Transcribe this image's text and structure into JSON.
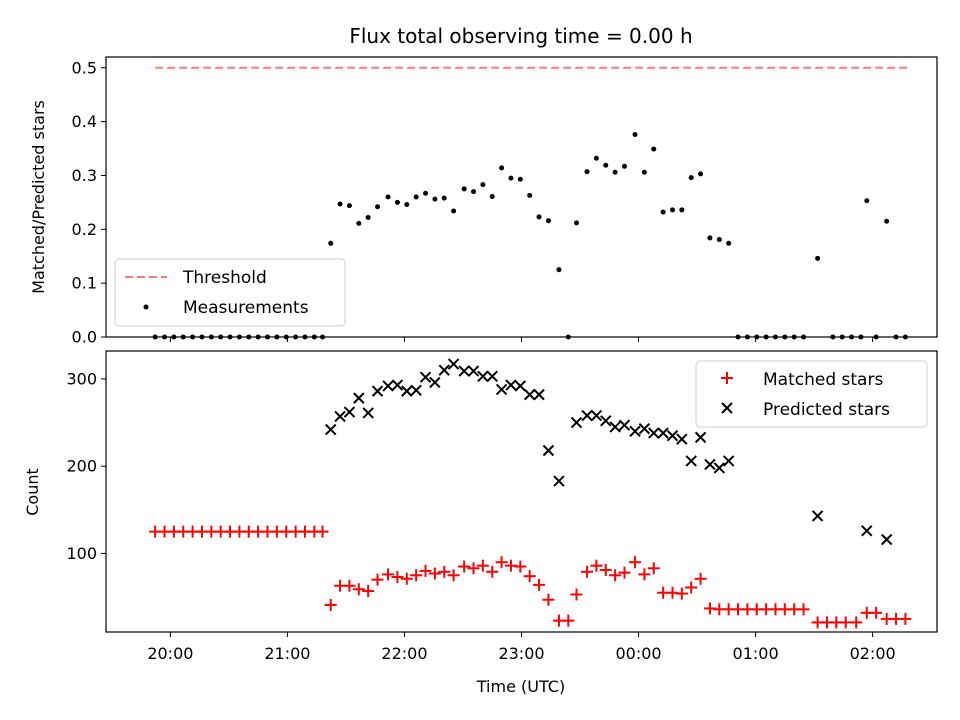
{
  "chart_data": [
    {
      "type": "scatter",
      "title": "Flux total observing time = 0.00 h",
      "ylabel": "Matched/Predicted stars",
      "xlim": [
        -0.55,
        6.55
      ],
      "ylim": [
        0,
        0.52
      ],
      "yticks": [
        0,
        0.1,
        0.2,
        0.3,
        0.4,
        0.5
      ],
      "ytick_labels": [
        "0.0",
        "0.1",
        "0.2",
        "0.3",
        "0.4",
        "0.5"
      ],
      "xticks": [
        0,
        1,
        2,
        3,
        4,
        5,
        6
      ],
      "legend": {
        "position": "lower-left",
        "labels": [
          "Threshold",
          "Measurements"
        ]
      },
      "threshold": {
        "name": "Threshold",
        "value": 0.5,
        "x_range": [
          -0.13,
          6.3
        ],
        "color": "#f08080"
      },
      "series": [
        {
          "name": "Measurements",
          "color": "#000000",
          "points": [
            [
              -0.13,
              0.0
            ],
            [
              -0.05,
              0.0
            ],
            [
              0.03,
              0.0
            ],
            [
              0.11,
              0.0
            ],
            [
              0.19,
              0.0
            ],
            [
              0.27,
              0.0
            ],
            [
              0.35,
              0.0
            ],
            [
              0.43,
              0.0
            ],
            [
              0.51,
              0.0
            ],
            [
              0.59,
              0.0
            ],
            [
              0.67,
              0.0
            ],
            [
              0.75,
              0.0
            ],
            [
              0.83,
              0.0
            ],
            [
              0.91,
              0.0
            ],
            [
              0.99,
              0.0
            ],
            [
              1.07,
              0.0
            ],
            [
              1.15,
              0.0
            ],
            [
              1.23,
              0.0
            ],
            [
              1.3,
              0.0
            ],
            [
              1.37,
              0.174
            ],
            [
              1.45,
              0.247
            ],
            [
              1.53,
              0.244
            ],
            [
              1.61,
              0.211
            ],
            [
              1.69,
              0.222
            ],
            [
              1.77,
              0.242
            ],
            [
              1.86,
              0.26
            ],
            [
              1.94,
              0.25
            ],
            [
              2.02,
              0.246
            ],
            [
              2.1,
              0.26
            ],
            [
              2.18,
              0.267
            ],
            [
              2.26,
              0.256
            ],
            [
              2.34,
              0.258
            ],
            [
              2.42,
              0.234
            ],
            [
              2.51,
              0.275
            ],
            [
              2.59,
              0.27
            ],
            [
              2.67,
              0.283
            ],
            [
              2.75,
              0.261
            ],
            [
              2.83,
              0.314
            ],
            [
              2.91,
              0.295
            ],
            [
              2.99,
              0.293
            ],
            [
              3.07,
              0.263
            ],
            [
              3.15,
              0.223
            ],
            [
              3.23,
              0.216
            ],
            [
              3.32,
              0.125
            ],
            [
              3.4,
              0.0
            ],
            [
              3.47,
              0.212
            ],
            [
              3.56,
              0.307
            ],
            [
              3.64,
              0.332
            ],
            [
              3.72,
              0.319
            ],
            [
              3.8,
              0.306
            ],
            [
              3.88,
              0.317
            ],
            [
              3.97,
              0.376
            ],
            [
              4.05,
              0.306
            ],
            [
              4.13,
              0.349
            ],
            [
              4.21,
              0.232
            ],
            [
              4.29,
              0.236
            ],
            [
              4.37,
              0.236
            ],
            [
              4.45,
              0.296
            ],
            [
              4.53,
              0.303
            ],
            [
              4.61,
              0.184
            ],
            [
              4.69,
              0.181
            ],
            [
              4.77,
              0.174
            ],
            [
              4.85,
              0.0
            ],
            [
              4.93,
              0.0
            ],
            [
              5.01,
              0.0
            ],
            [
              5.09,
              0.0
            ],
            [
              5.17,
              0.0
            ],
            [
              5.25,
              0.0
            ],
            [
              5.33,
              0.0
            ],
            [
              5.41,
              0.0
            ],
            [
              5.53,
              0.146
            ],
            [
              5.66,
              0.0
            ],
            [
              5.74,
              0.0
            ],
            [
              5.82,
              0.0
            ],
            [
              5.9,
              0.0
            ],
            [
              5.95,
              0.253
            ],
            [
              6.03,
              0.0
            ],
            [
              6.12,
              0.215
            ],
            [
              6.2,
              0.0
            ],
            [
              6.28,
              0.0
            ]
          ]
        }
      ]
    },
    {
      "type": "scatter",
      "title": "",
      "xlabel": "Time (UTC)",
      "ylabel": "Count",
      "xlim": [
        -0.55,
        6.55
      ],
      "ylim": [
        10,
        332
      ],
      "yticks": [
        100,
        200,
        300
      ],
      "ytick_labels": [
        "100",
        "200",
        "300"
      ],
      "xticks": [
        0,
        1,
        2,
        3,
        4,
        5,
        6
      ],
      "xtick_labels": [
        "20:00",
        "21:00",
        "22:00",
        "23:00",
        "00:00",
        "01:00",
        "02:00"
      ],
      "legend": {
        "position": "top-right",
        "labels": [
          "Matched stars",
          "Predicted stars"
        ]
      },
      "series": [
        {
          "name": "Matched stars",
          "marker": "+",
          "color": "#ff0000",
          "points": [
            [
              -0.13,
              125
            ],
            [
              -0.05,
              125
            ],
            [
              0.03,
              125
            ],
            [
              0.11,
              125
            ],
            [
              0.19,
              125
            ],
            [
              0.27,
              125
            ],
            [
              0.35,
              125
            ],
            [
              0.43,
              125
            ],
            [
              0.51,
              125
            ],
            [
              0.59,
              125
            ],
            [
              0.67,
              125
            ],
            [
              0.75,
              125
            ],
            [
              0.83,
              125
            ],
            [
              0.91,
              125
            ],
            [
              0.99,
              125
            ],
            [
              1.07,
              125
            ],
            [
              1.15,
              125
            ],
            [
              1.23,
              125
            ],
            [
              1.3,
              125
            ],
            [
              1.37,
              41
            ],
            [
              1.45,
              63
            ],
            [
              1.53,
              63
            ],
            [
              1.61,
              59
            ],
            [
              1.69,
              57
            ],
            [
              1.77,
              70
            ],
            [
              1.86,
              76
            ],
            [
              1.94,
              73
            ],
            [
              2.02,
              71
            ],
            [
              2.1,
              75
            ],
            [
              2.18,
              80
            ],
            [
              2.26,
              77
            ],
            [
              2.34,
              79
            ],
            [
              2.42,
              75
            ],
            [
              2.51,
              85
            ],
            [
              2.59,
              83
            ],
            [
              2.67,
              86
            ],
            [
              2.75,
              79
            ],
            [
              2.83,
              90
            ],
            [
              2.91,
              86
            ],
            [
              2.99,
              85
            ],
            [
              3.07,
              74
            ],
            [
              3.15,
              64
            ],
            [
              3.23,
              47
            ],
            [
              3.32,
              23
            ],
            [
              3.4,
              23
            ],
            [
              3.47,
              53
            ],
            [
              3.56,
              79
            ],
            [
              3.64,
              86
            ],
            [
              3.72,
              81
            ],
            [
              3.8,
              75
            ],
            [
              3.88,
              78
            ],
            [
              3.97,
              90
            ],
            [
              4.05,
              76
            ],
            [
              4.13,
              83
            ],
            [
              4.21,
              55
            ],
            [
              4.29,
              55
            ],
            [
              4.37,
              54
            ],
            [
              4.45,
              61
            ],
            [
              4.53,
              71
            ],
            [
              4.61,
              37
            ],
            [
              4.69,
              36
            ],
            [
              4.77,
              36
            ],
            [
              4.85,
              36
            ],
            [
              4.93,
              36
            ],
            [
              5.01,
              36
            ],
            [
              5.09,
              36
            ],
            [
              5.17,
              36
            ],
            [
              5.25,
              36
            ],
            [
              5.33,
              36
            ],
            [
              5.41,
              36
            ],
            [
              5.53,
              21
            ],
            [
              5.61,
              21
            ],
            [
              5.69,
              21
            ],
            [
              5.77,
              21
            ],
            [
              5.86,
              21
            ],
            [
              5.95,
              32
            ],
            [
              6.03,
              32
            ],
            [
              6.12,
              25
            ],
            [
              6.2,
              25
            ],
            [
              6.28,
              25
            ]
          ]
        },
        {
          "name": "Predicted stars",
          "marker": "x",
          "color": "#000000",
          "points": [
            [
              1.37,
              242
            ],
            [
              1.45,
              257
            ],
            [
              1.53,
              262
            ],
            [
              1.61,
              278
            ],
            [
              1.69,
              261
            ],
            [
              1.77,
              286
            ],
            [
              1.86,
              292
            ],
            [
              1.94,
              293
            ],
            [
              2.02,
              286
            ],
            [
              2.1,
              287
            ],
            [
              2.18,
              302
            ],
            [
              2.26,
              296
            ],
            [
              2.34,
              310
            ],
            [
              2.42,
              317
            ],
            [
              2.51,
              309
            ],
            [
              2.59,
              309
            ],
            [
              2.67,
              303
            ],
            [
              2.75,
              303
            ],
            [
              2.83,
              288
            ],
            [
              2.91,
              293
            ],
            [
              2.99,
              292
            ],
            [
              3.07,
              282
            ],
            [
              3.15,
              282
            ],
            [
              3.23,
              218
            ],
            [
              3.32,
              183
            ],
            [
              3.47,
              250
            ],
            [
              3.56,
              258
            ],
            [
              3.64,
              258
            ],
            [
              3.72,
              252
            ],
            [
              3.8,
              245
            ],
            [
              3.88,
              247
            ],
            [
              3.97,
              240
            ],
            [
              4.05,
              243
            ],
            [
              4.13,
              238
            ],
            [
              4.21,
              238
            ],
            [
              4.29,
              235
            ],
            [
              4.37,
              231
            ],
            [
              4.45,
              206
            ],
            [
              4.53,
              233
            ],
            [
              4.61,
              202
            ],
            [
              4.69,
              198
            ],
            [
              4.77,
              206
            ],
            [
              5.53,
              143
            ],
            [
              5.95,
              126
            ],
            [
              6.12,
              116
            ]
          ]
        }
      ]
    }
  ]
}
